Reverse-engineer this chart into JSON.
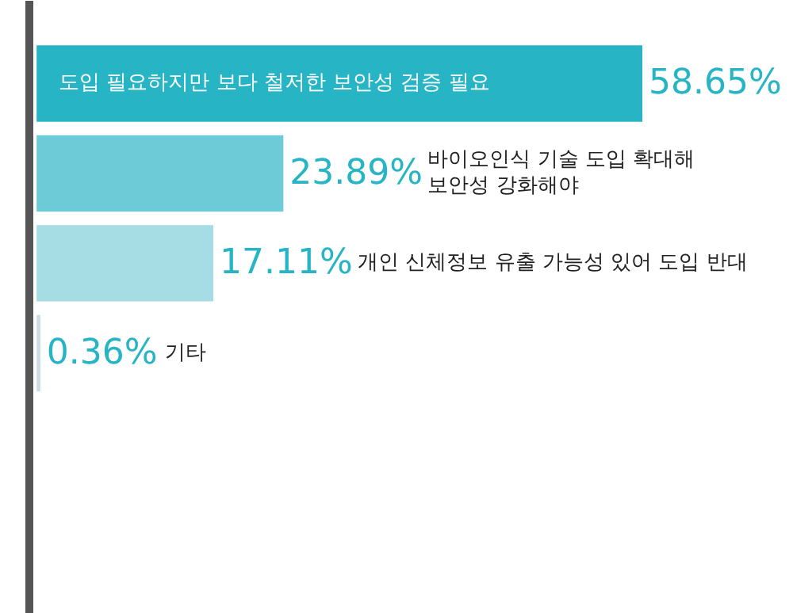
{
  "chart_data": {
    "type": "bar",
    "orientation": "horizontal",
    "categories": [
      "도입 필요하지만 보다 철저한 보안성 검증 필요",
      "바이오인식 기술 도입 확대해\n보안성 강화해야",
      "개인 신체정보 유출 가능성 있어 도입 반대",
      "기타"
    ],
    "values": [
      58.65,
      23.89,
      17.11,
      0.36
    ],
    "colors": [
      "#27b5c6",
      "#6ccbd7",
      "#a6dde5",
      "#c9dde3"
    ],
    "value_labels": [
      "58.65%",
      "23.89%",
      "17.11%",
      "0.36%"
    ],
    "tick_labels": false,
    "grid": false
  }
}
